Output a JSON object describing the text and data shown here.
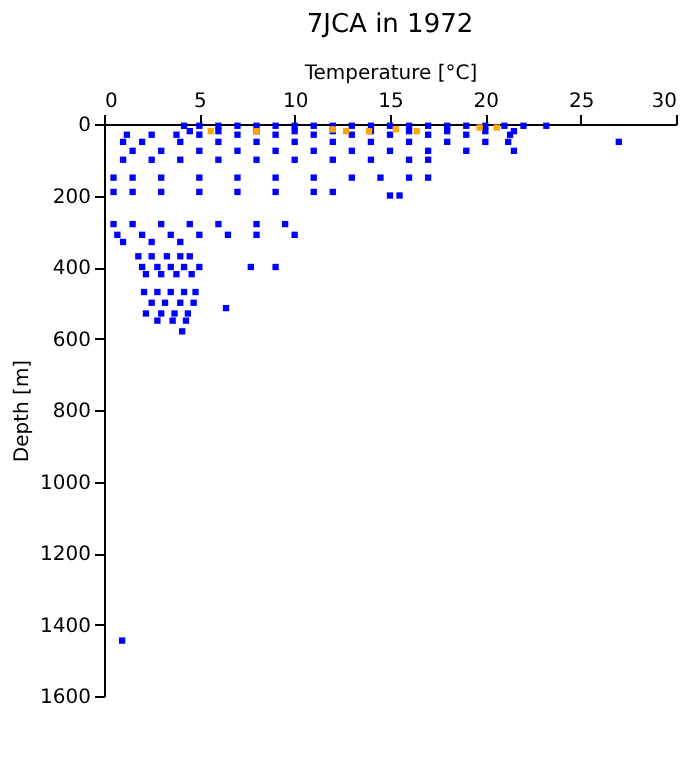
{
  "chart_data": {
    "type": "scatter",
    "title": "7JCA in 1972",
    "xlabel": "Temperature [°C]",
    "ylabel": "Depth [m]",
    "xlim": [
      0,
      30
    ],
    "xticks": [
      0,
      5,
      10,
      15,
      20,
      25,
      30
    ],
    "ylim": [
      1600,
      0
    ],
    "yticks": [
      0,
      200,
      400,
      600,
      800,
      1000,
      1200,
      1400,
      1600
    ],
    "grid": false,
    "marker": "square",
    "series": [
      {
        "color": "#0000ff",
        "x": [
          4.2,
          5,
          6,
          7,
          8,
          9,
          10,
          11,
          12,
          13,
          14,
          15,
          16,
          17,
          18,
          19,
          20,
          21,
          22,
          23.2,
          4.5,
          6,
          8,
          10,
          12,
          14,
          16,
          18,
          20,
          21.5,
          1.2,
          2.5,
          3.8,
          5,
          7,
          9,
          11,
          13,
          15,
          17,
          19,
          21.3,
          1,
          2,
          4,
          6,
          8,
          10,
          12,
          14,
          16,
          18,
          20,
          21.2,
          27,
          1.5,
          3,
          5,
          7,
          9,
          11,
          13,
          15,
          17,
          19,
          21.5,
          1,
          2.5,
          4,
          6,
          8,
          10,
          12,
          14,
          16,
          17,
          0.5,
          1.5,
          3,
          5,
          7,
          9,
          11,
          13,
          14.5,
          16,
          17,
          0.5,
          1.5,
          3,
          5,
          7,
          9,
          11,
          12,
          15,
          15.5,
          0.5,
          1.5,
          3,
          4.5,
          6,
          8,
          9.5,
          0.7,
          2,
          3.5,
          5,
          6.5,
          8,
          10,
          1,
          2.5,
          4,
          1.8,
          2.5,
          3.3,
          4,
          4.5,
          2,
          2.8,
          3.5,
          4.2,
          5,
          7.7,
          9,
          2.2,
          3,
          3.8,
          4.6,
          2.1,
          2.8,
          3.5,
          4.2,
          4.8,
          2.5,
          3.2,
          4,
          4.7,
          6.4,
          2.2,
          3,
          3.7,
          4.4,
          2.8,
          3.6,
          4.3,
          4.1,
          0.95
        ],
        "values": [
          5,
          5,
          5,
          5,
          5,
          5,
          5,
          5,
          5,
          5,
          5,
          5,
          5,
          5,
          5,
          5,
          5,
          5,
          5,
          5,
          20,
          20,
          20,
          20,
          20,
          20,
          20,
          20,
          20,
          20,
          30,
          30,
          30,
          30,
          30,
          30,
          30,
          30,
          30,
          30,
          30,
          30,
          50,
          50,
          50,
          50,
          50,
          50,
          50,
          50,
          50,
          50,
          50,
          50,
          50,
          75,
          75,
          75,
          75,
          75,
          75,
          75,
          75,
          75,
          75,
          75,
          100,
          100,
          100,
          100,
          100,
          100,
          100,
          100,
          100,
          100,
          150,
          150,
          150,
          150,
          150,
          150,
          150,
          150,
          150,
          150,
          150,
          190,
          190,
          190,
          190,
          190,
          190,
          190,
          190,
          200,
          200,
          280,
          280,
          280,
          280,
          280,
          280,
          280,
          310,
          310,
          310,
          310,
          310,
          310,
          310,
          330,
          330,
          330,
          370,
          370,
          370,
          370,
          370,
          400,
          400,
          400,
          400,
          400,
          400,
          400,
          420,
          420,
          420,
          420,
          470,
          470,
          470,
          470,
          470,
          500,
          500,
          500,
          500,
          515,
          530,
          530,
          530,
          530,
          550,
          550,
          550,
          580,
          1445
        ]
      },
      {
        "color": "#ffa500",
        "x": [
          5.6,
          8.0,
          12.0,
          12.7,
          13.9,
          15.3,
          16.4,
          19.7,
          20.6
        ],
        "values": [
          20,
          20,
          15,
          20,
          20,
          15,
          20,
          10,
          10
        ]
      }
    ]
  }
}
